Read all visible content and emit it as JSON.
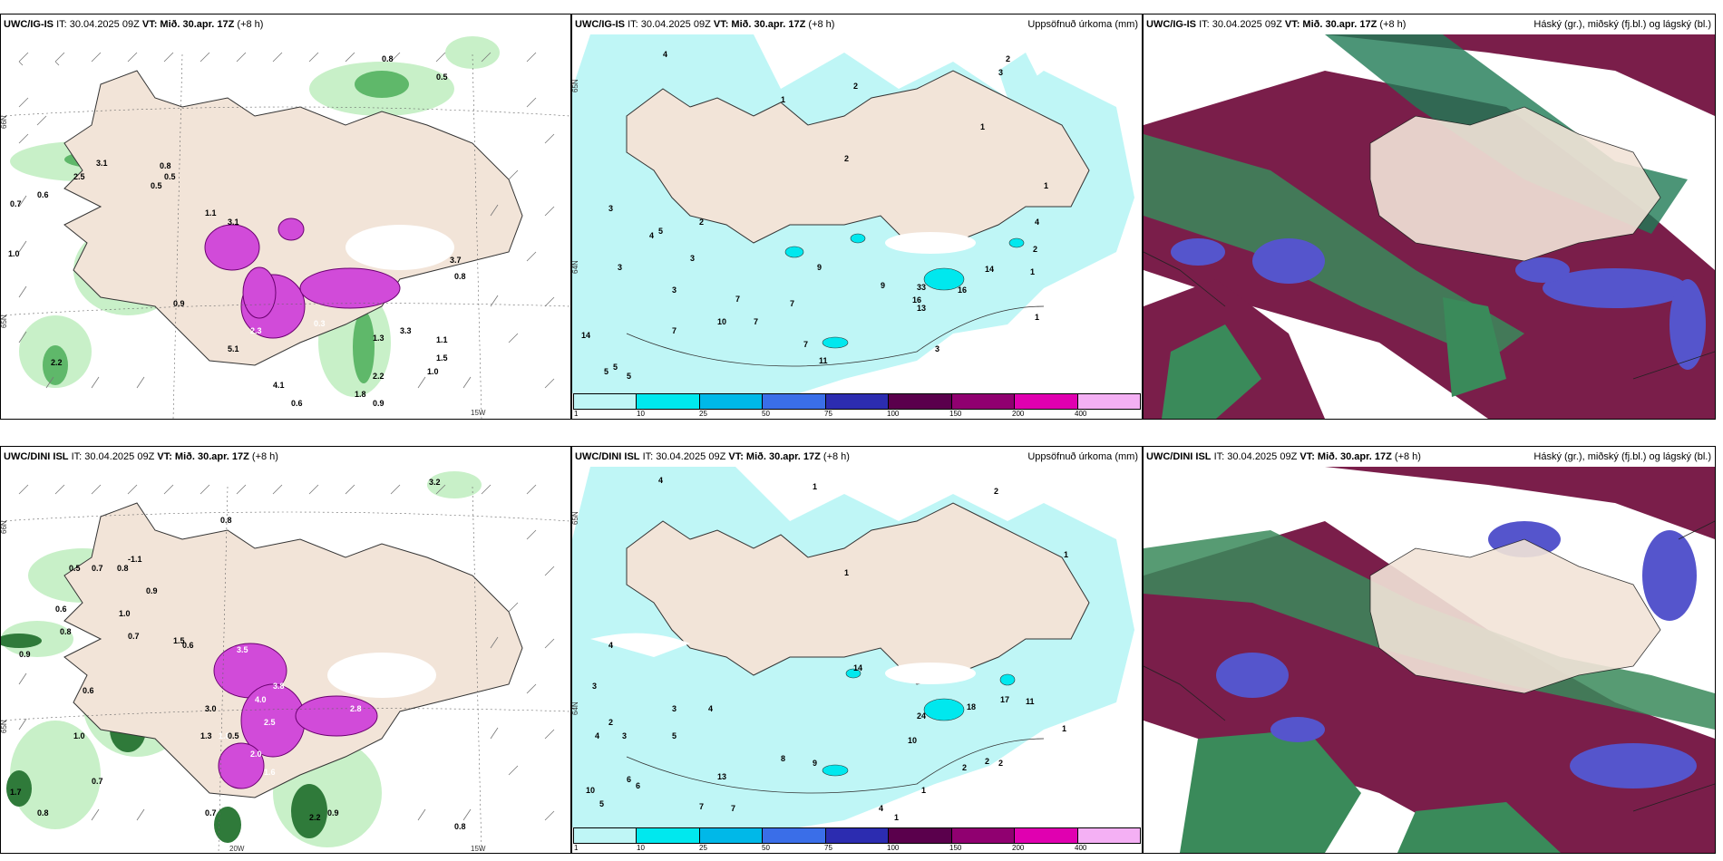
{
  "panels": [
    {
      "model": "UWC/IG-IS",
      "it": "IT: 30.04.2025 09Z",
      "vt": "VT: Mið. 30.apr. 17Z",
      "lead": "(+8 h)",
      "right": ""
    },
    {
      "model": "UWC/IG-IS",
      "it": "IT: 30.04.2025 09Z",
      "vt": "VT: Mið. 30.apr. 17Z",
      "lead": "(+8 h)",
      "right": "Uppsöfnuð úrkoma (mm)"
    },
    {
      "model": "UWC/IG-IS",
      "it": "IT: 30.04.2025 09Z",
      "vt": "VT: Mið. 30.apr. 17Z",
      "lead": "(+8 h)",
      "right": "Háský (gr.), miðský (fj.bl.) og lágský (bl.)"
    },
    {
      "model": "UWC/DINI ISL",
      "it": "IT: 30.04.2025 09Z",
      "vt": "VT: Mið. 30.apr. 17Z",
      "lead": "(+8 h)",
      "right": ""
    },
    {
      "model": "UWC/DINI ISL",
      "it": "IT: 30.04.2025 09Z",
      "vt": "VT: Mið. 30.apr. 17Z",
      "lead": "(+8 h)",
      "right": "Uppsöfnuð úrkoma (mm)"
    },
    {
      "model": "UWC/DINI ISL",
      "it": "IT: 30.04.2025 09Z",
      "vt": "VT: Mið. 30.apr. 17Z",
      "lead": "(+8 h)",
      "right": "Háský (gr.), miðský (fj.bl.) og lágský (bl.)"
    }
  ],
  "legend": {
    "ticks": [
      "1",
      "10",
      "25",
      "50",
      "75",
      "100",
      "150",
      "200",
      "400"
    ],
    "colors": [
      "#bff6f6",
      "#00e8ee",
      "#00b8e8",
      "#3a6ee8",
      "#2c2cb0",
      "#5a004c",
      "#900070",
      "#e000b0",
      "#f4b0f4"
    ]
  },
  "axis_labels": {
    "lat66": "66N",
    "lat65": "65N",
    "lat64": "64N",
    "lon20": "20W",
    "lon15": "15W"
  },
  "labels": {
    "p1": [
      "0.8",
      "0.5",
      "0.5",
      "3.1",
      "0.8",
      "2.5",
      "0.7",
      "0.6",
      "0.5",
      "1.0",
      "3.1",
      "1.1",
      "0.9",
      "3.7",
      "0.8",
      "0.3",
      "2.3",
      "5.1",
      "0.6",
      "1.3",
      "1.8",
      "0.9",
      "2.2",
      "3.3",
      "4.1",
      "2.2",
      "1.5",
      "1.1",
      "1.0"
    ],
    "p2": [
      "4",
      "2",
      "3",
      "1",
      "2",
      "2",
      "1",
      "1",
      "3",
      "3",
      "4",
      "2",
      "3",
      "5",
      "7",
      "7",
      "10",
      "7",
      "5",
      "5",
      "14",
      "9",
      "9",
      "13",
      "33",
      "16",
      "16",
      "14",
      "1",
      "2",
      "3",
      "4",
      "1",
      "11",
      "7",
      "7",
      "5",
      "3"
    ],
    "p4": [
      "3.2",
      "0.8",
      "0.5",
      "0.7",
      "0.8",
      "-1.1",
      "0.6",
      "1.0",
      "0.9",
      "0.6",
      "0.8",
      "0.9",
      "0.6",
      "0.7",
      "1.0",
      "0.7",
      "1.7",
      "0.8",
      "3.5",
      "1.3",
      "1.8",
      "2.0",
      "4.0",
      "3.8",
      "0.5",
      "3.0",
      "2.5",
      "2.8",
      "1.6",
      "2.2",
      "0.7",
      "0.9",
      "1.5",
      "0.8"
    ],
    "p5": [
      "4",
      "1",
      "2",
      "1",
      "1",
      "4",
      "3",
      "2",
      "3",
      "3",
      "4",
      "4",
      "5",
      "6",
      "7",
      "6",
      "5",
      "10",
      "13",
      "7",
      "9",
      "8",
      "10",
      "24",
      "18",
      "14",
      "17",
      "11",
      "1",
      "2",
      "2",
      "2",
      "1",
      "1",
      "4"
    ]
  }
}
